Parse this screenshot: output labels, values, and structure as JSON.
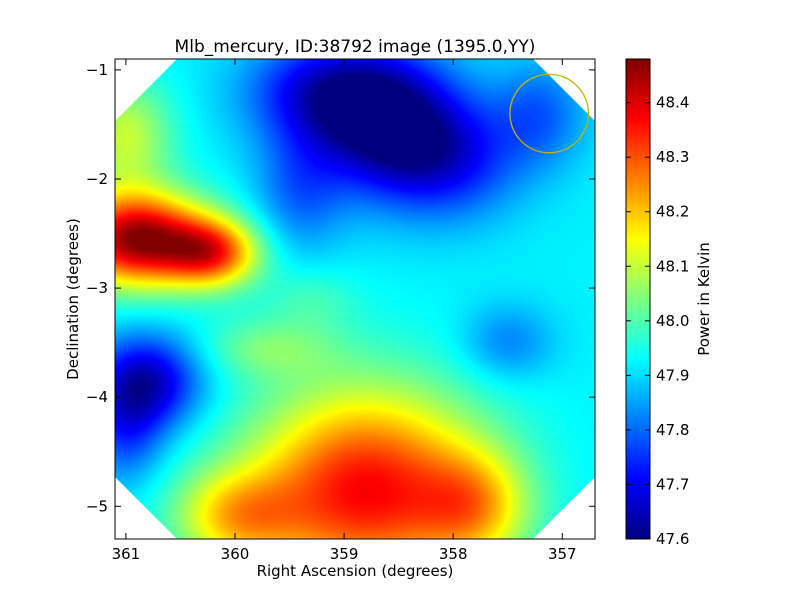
{
  "chart_data": {
    "type": "heatmap",
    "title": "Mlb_mercury, ID:38792 image (1395.0,YY)",
    "xlabel": "Right Ascension (degrees)",
    "ylabel": "Declination (degrees)",
    "colorbar_label": "Power in Kelvin",
    "colormap": "jet",
    "xlim": [
      361.1,
      356.7
    ],
    "ylim": [
      -5.3,
      -0.9
    ],
    "x_ticks": [
      {
        "value": 361,
        "label": "361"
      },
      {
        "value": 360,
        "label": "360"
      },
      {
        "value": 359,
        "label": "359"
      },
      {
        "value": 358,
        "label": "358"
      },
      {
        "value": 357,
        "label": "357"
      }
    ],
    "y_ticks": [
      {
        "value": -1,
        "label": "−1"
      },
      {
        "value": -2,
        "label": "−2"
      },
      {
        "value": -3,
        "label": "−3"
      },
      {
        "value": -4,
        "label": "−4"
      },
      {
        "value": -5,
        "label": "−5"
      }
    ],
    "color_range": [
      47.6,
      48.48
    ],
    "colorbar_ticks": [
      {
        "value": 47.6,
        "label": "47.6"
      },
      {
        "value": 47.7,
        "label": "47.7"
      },
      {
        "value": 47.8,
        "label": "47.8"
      },
      {
        "value": 47.9,
        "label": "47.9"
      },
      {
        "value": 48.0,
        "label": "48.0"
      },
      {
        "value": 48.1,
        "label": "48.1"
      },
      {
        "value": 48.2,
        "label": "48.2"
      },
      {
        "value": 48.3,
        "label": "48.3"
      },
      {
        "value": 48.4,
        "label": "48.4"
      }
    ],
    "background": 47.92,
    "components": [
      {
        "ra": 360.9,
        "dec": -2.55,
        "amp": 0.55,
        "s_ra": 0.45,
        "s_dec": 0.3
      },
      {
        "ra": 360.2,
        "dec": -2.68,
        "amp": 0.35,
        "s_ra": 0.3,
        "s_dec": 0.22
      },
      {
        "ra": 361.0,
        "dec": -1.6,
        "amp": 0.18,
        "s_ra": 0.3,
        "s_dec": 0.35
      },
      {
        "ra": 358.8,
        "dec": -4.85,
        "amp": 0.45,
        "s_ra": 0.75,
        "s_dec": 0.65
      },
      {
        "ra": 360.0,
        "dec": -5.1,
        "amp": 0.22,
        "s_ra": 0.4,
        "s_dec": 0.3
      },
      {
        "ra": 357.8,
        "dec": -5.0,
        "amp": 0.2,
        "s_ra": 0.35,
        "s_dec": 0.35
      },
      {
        "ra": 358.6,
        "dec": -1.5,
        "amp": -0.3,
        "s_ra": 0.45,
        "s_dec": 0.45
      },
      {
        "ra": 359.2,
        "dec": -1.2,
        "amp": -0.22,
        "s_ra": 0.5,
        "s_dec": 0.35
      },
      {
        "ra": 358.0,
        "dec": -1.8,
        "amp": -0.18,
        "s_ra": 0.45,
        "s_dec": 0.4
      },
      {
        "ra": 359.4,
        "dec": -2.1,
        "amp": -0.12,
        "s_ra": 0.3,
        "s_dec": 0.4
      },
      {
        "ra": 360.8,
        "dec": -3.85,
        "amp": -0.26,
        "s_ra": 0.35,
        "s_dec": 0.3
      },
      {
        "ra": 361.0,
        "dec": -4.3,
        "amp": -0.15,
        "s_ra": 0.25,
        "s_dec": 0.35
      },
      {
        "ra": 357.5,
        "dec": -3.5,
        "amp": -0.1,
        "s_ra": 0.3,
        "s_dec": 0.25
      },
      {
        "ra": 357.2,
        "dec": -1.4,
        "amp": -0.12,
        "s_ra": 0.3,
        "s_dec": 0.35
      },
      {
        "ra": 359.7,
        "dec": -3.55,
        "amp": 0.1,
        "s_ra": 0.45,
        "s_dec": 0.2
      },
      {
        "ra": 359.3,
        "dec": -3.1,
        "amp": 0.06,
        "s_ra": 0.3,
        "s_dec": 0.2
      }
    ],
    "annotation_circle": {
      "ra": 357.12,
      "dec": -1.4,
      "radius_deg": 0.36,
      "color": "#c8b400"
    },
    "colors": {
      "axis": "#000000",
      "circle": "#c8b400"
    }
  }
}
